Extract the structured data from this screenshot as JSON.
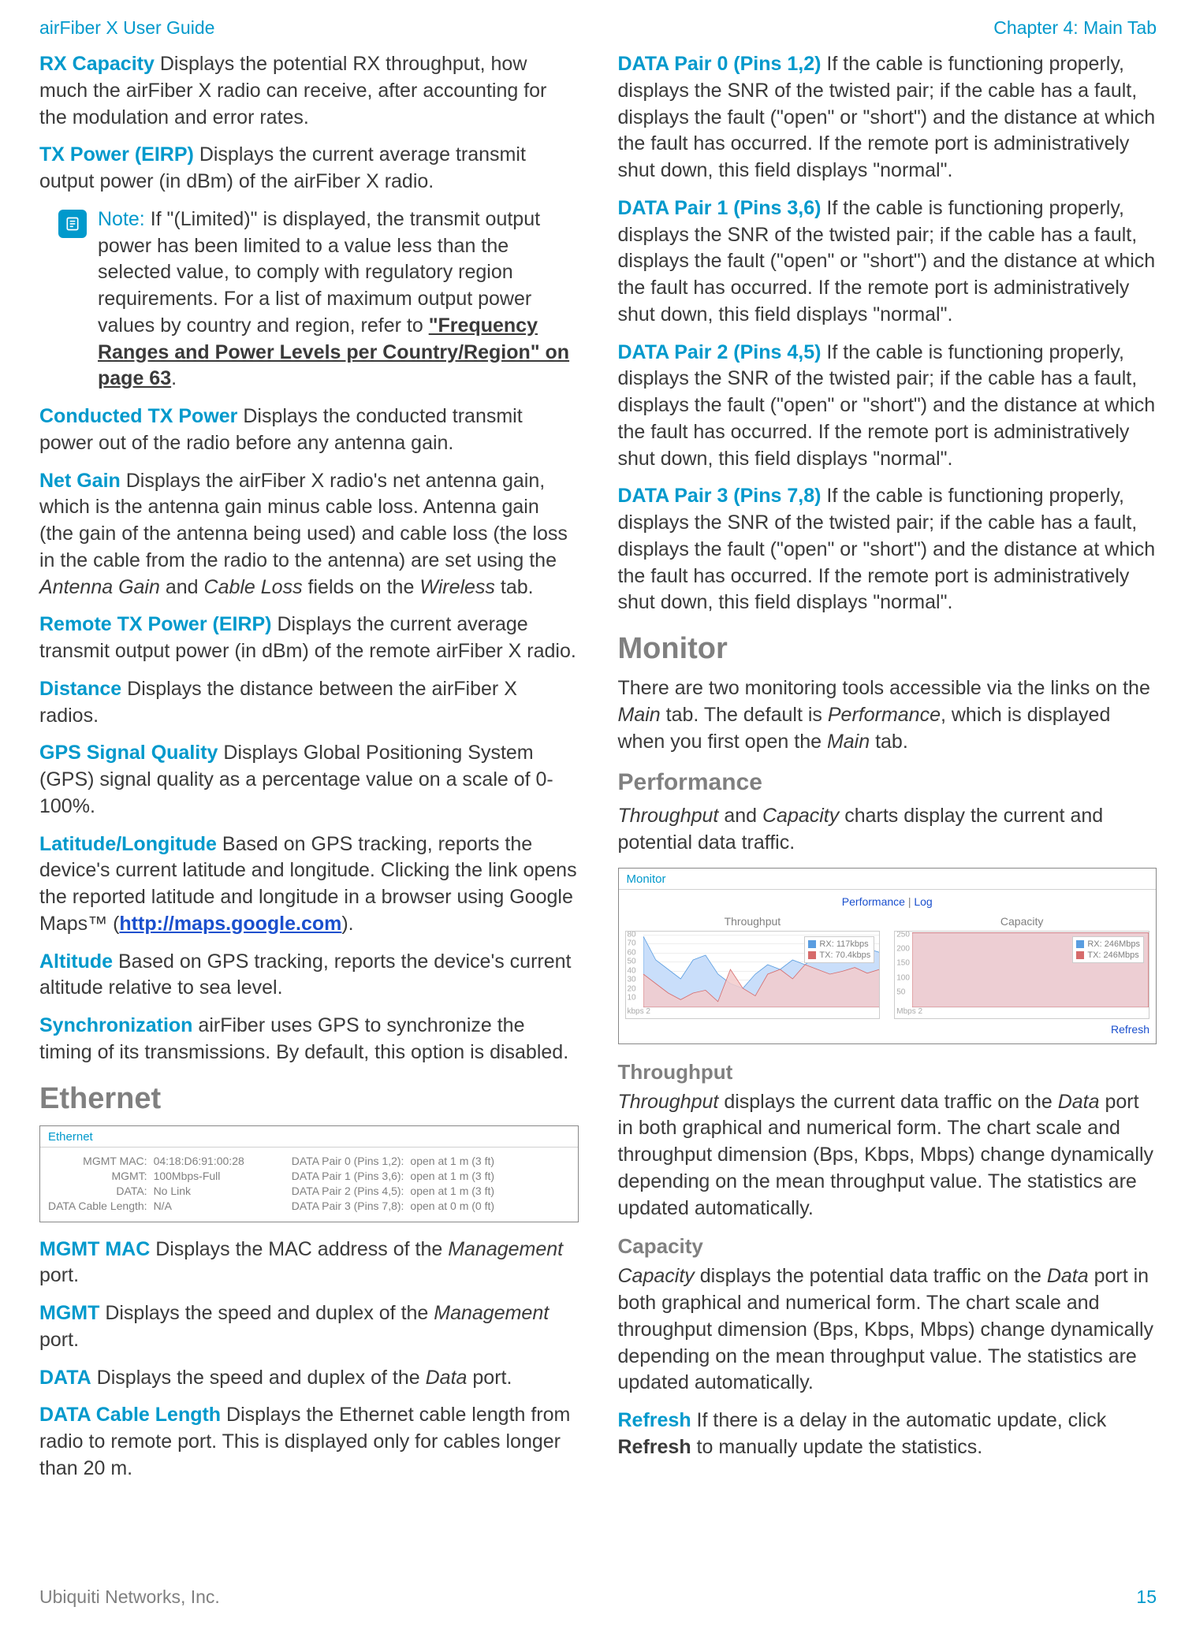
{
  "header": {
    "left": "airFiber X User Guide",
    "right": "Chapter 4: Main Tab"
  },
  "footer": {
    "left": "Ubiquiti Networks, Inc.",
    "page": "15"
  },
  "note": {
    "label": "Note:",
    "pre": " If \"(Limited)\" is displayed, the transmit output power has been limited to a value less than the selected value, to comply with regulatory region requirements. For a list of maximum output power values by country and region, refer to ",
    "xref": "\"Frequency Ranges and Power Levels per Country/Region\" on page 63",
    "post": "."
  },
  "left_items": {
    "rx_capacity": {
      "term": "RX Capacity",
      "text": "   Displays the potential RX throughput, how much the airFiber X radio can receive, after accounting for the modulation and error rates."
    },
    "tx_power": {
      "term": "TX Power (EIRP)",
      "text": "   Displays the current average transmit output power (in dBm) of the airFiber X radio."
    },
    "conducted": {
      "term": "Conducted TX Power",
      "text": "   Displays the conducted transmit power out of the radio before any antenna gain."
    },
    "net_gain": {
      "term": "Net Gain",
      "pre": "   Displays the airFiber X radio's net antenna gain, which is the antenna gain minus cable loss. Antenna gain (the gain of the antenna being used) and cable loss (the loss in the cable from the radio to the antenna) are set using the ",
      "i1": "Antenna Gain",
      "mid1": " and ",
      "i2": "Cable Loss",
      "mid2": " fields on the ",
      "i3": "Wireless",
      "post": " tab."
    },
    "remote_tx": {
      "term": "Remote TX Power (EIRP)",
      "text": "   Displays the current average transmit output power (in dBm) of the remote airFiber X radio."
    },
    "distance": {
      "term": "Distance",
      "text": "   Displays the distance between the airFiber X radios."
    },
    "gps_sq": {
      "term": "GPS Signal Quality",
      "text": "   Displays Global Positioning System (GPS) signal quality as a percentage value on a scale of 0-100%."
    },
    "latlon": {
      "term": "Latitude/Longitude",
      "pre": "   Based on GPS tracking, reports the device's current latitude and longitude. Clicking the link opens the reported latitude and longitude in a browser using Google Maps™ (",
      "link": "http://maps.google.com",
      "post": ")."
    },
    "altitude": {
      "term": "Altitude",
      "text": "   Based on GPS tracking, reports the device's current altitude relative to sea level."
    },
    "sync": {
      "term": "Synchronization",
      "text": "   airFiber uses GPS to synchronize the timing of its transmissions. By default, this option is disabled."
    },
    "ethernet_h": "Ethernet",
    "mgmt_mac": {
      "term": "MGMT MAC",
      "pre": "   Displays the MAC address of the ",
      "i1": "Management",
      "post": " port."
    },
    "mgmt": {
      "term": "MGMT",
      "pre": "   Displays the speed and duplex of the ",
      "i1": "Management",
      "post": " port."
    },
    "data": {
      "term": "DATA",
      "pre": "   Displays the speed and duplex of the ",
      "i1": "Data",
      "post": " port."
    },
    "dcl": {
      "term": "DATA Cable Length",
      "text": "   Displays the Ethernet cable length from radio to remote port. This is displayed only for cables longer than 20 m."
    }
  },
  "right_items": {
    "dp0": {
      "term": "DATA Pair 0 (Pins 1,2)",
      "text": "   If the cable is functioning properly, displays the SNR of the twisted pair; if the cable has a fault, displays the fault (\"open\" or \"short\") and the distance at which the fault has occurred. If the remote port is administratively shut down, this field displays \"normal\"."
    },
    "dp1": {
      "term": "DATA Pair 1 (Pins 3,6)",
      "text": "   If the cable is functioning properly, displays the SNR of the twisted pair; if the cable has a fault, displays the fault (\"open\" or \"short\") and the distance at which the fault has occurred. If the remote port is administratively shut down, this field displays \"normal\"."
    },
    "dp2": {
      "term": "DATA Pair 2 (Pins 4,5)",
      "text": "   If the cable is functioning properly, displays the SNR of the twisted pair; if the cable has a fault, displays the fault (\"open\" or \"short\") and the distance at which the fault has occurred. If the remote port is administratively shut down, this field displays \"normal\"."
    },
    "dp3": {
      "term": "DATA Pair 3 (Pins 7,8)",
      "text": "   If the cable is functioning properly, displays the SNR of the twisted pair; if the cable has a fault, displays the fault (\"open\" or \"short\") and the distance at which the fault has occurred. If the remote port is administratively shut down, this field displays \"normal\"."
    },
    "monitor_h": "Monitor",
    "monitor_p": {
      "pre": "There are two monitoring tools accessible via the links on the ",
      "i1": "Main",
      "mid1": " tab. The default is ",
      "i2": "Performance",
      "mid2": ", which is displayed when you first open the ",
      "i3": "Main",
      "post": " tab."
    },
    "performance_h": "Performance",
    "performance_p": {
      "i1": "Throughput",
      "mid": " and ",
      "i2": "Capacity",
      "post": " charts display the current and potential data traffic."
    },
    "throughput_h": "Throughput",
    "throughput_p": {
      "i1": "Throughput",
      "mid1": " displays the current data traffic on the ",
      "i2": "Data",
      "post": " port in both graphical and numerical form. The chart scale and throughput dimension (Bps, Kbps, Mbps) change dynamically depending on the mean throughput value. The statistics are updated automatically."
    },
    "capacity_h": "Capacity",
    "capacity_p": {
      "i1": "Capacity",
      "mid1": " displays the potential data traffic on the ",
      "i2": "Data",
      "post": " port in both graphical and numerical form. The chart scale and throughput dimension (Bps, Kbps, Mbps) change dynamically depending on the mean throughput value. The statistics are updated automatically."
    },
    "refresh": {
      "term": "Refresh",
      "pre": "   If there is a delay in the automatic update, click ",
      "b": "Refresh",
      "post": " to manually update the statistics."
    }
  },
  "eth_panel": {
    "title": "Ethernet",
    "left_rows": [
      {
        "l": "MGMT MAC:",
        "r": "04:18:D6:91:00:28"
      },
      {
        "l": "MGMT:",
        "r": "100Mbps-Full"
      },
      {
        "l": "DATA:",
        "r": "No Link"
      },
      {
        "l": "DATA Cable Length:",
        "r": "N/A"
      }
    ],
    "right_rows": [
      {
        "l": "DATA Pair 0 (Pins 1,2):",
        "r": "open at 1 m (3 ft)"
      },
      {
        "l": "DATA Pair 1 (Pins 3,6):",
        "r": "open at 1 m (3 ft)"
      },
      {
        "l": "DATA Pair 2 (Pins 4,5):",
        "r": "open at 1 m (3 ft)"
      },
      {
        "l": "DATA Pair 3 (Pins 7,8):",
        "r": "open at 0 m (0 ft)"
      }
    ]
  },
  "monitor_panel": {
    "title": "Monitor",
    "tabs": {
      "active": "Performance",
      "sep": " | ",
      "other": "Log"
    },
    "refresh": "Refresh",
    "throughput_chart": {
      "title": "Throughput",
      "type": "area",
      "ymin": 0,
      "ymax": 80,
      "ytick_step": 10,
      "xunit": "kbps 2",
      "rx_color": "#5a9de0",
      "rx_fill": "#c9defa",
      "tx_color": "#d66b6b",
      "tx_fill": "#f3cbcb",
      "grid_color": "#eeeeee",
      "legend": {
        "rx": "RX: 117kbps",
        "tx": "TX: 70.4kbps"
      },
      "rx_values": [
        75,
        50,
        40,
        30,
        50,
        55,
        35,
        25,
        20,
        35,
        45,
        40,
        50,
        45,
        55,
        50,
        60,
        55,
        62,
        58
      ],
      "tx_values": [
        35,
        25,
        15,
        8,
        15,
        18,
        6,
        40,
        20,
        12,
        35,
        40,
        30,
        45,
        40,
        35,
        38,
        42,
        36,
        40
      ]
    },
    "capacity_chart": {
      "title": "Capacity",
      "type": "area",
      "ymin": 0,
      "ymax": 250,
      "ytick_step": 50,
      "xunit": "Mbps 2",
      "rx_color": "#5a9de0",
      "rx_fill": "#c9defa",
      "tx_color": "#d66b6b",
      "tx_fill": "#f3cbcb",
      "grid_color": "#eeeeee",
      "legend": {
        "rx": "RX: 246Mbps",
        "tx": "TX: 246Mbps"
      },
      "rx_values": [
        246,
        246,
        246,
        246,
        246,
        246,
        246,
        246,
        246,
        246,
        246,
        246,
        246,
        246,
        246,
        246,
        246,
        246,
        246,
        246
      ],
      "tx_values": [
        246,
        246,
        246,
        246,
        246,
        246,
        246,
        246,
        246,
        246,
        246,
        246,
        246,
        246,
        246,
        246,
        246,
        246,
        246,
        246
      ]
    }
  }
}
